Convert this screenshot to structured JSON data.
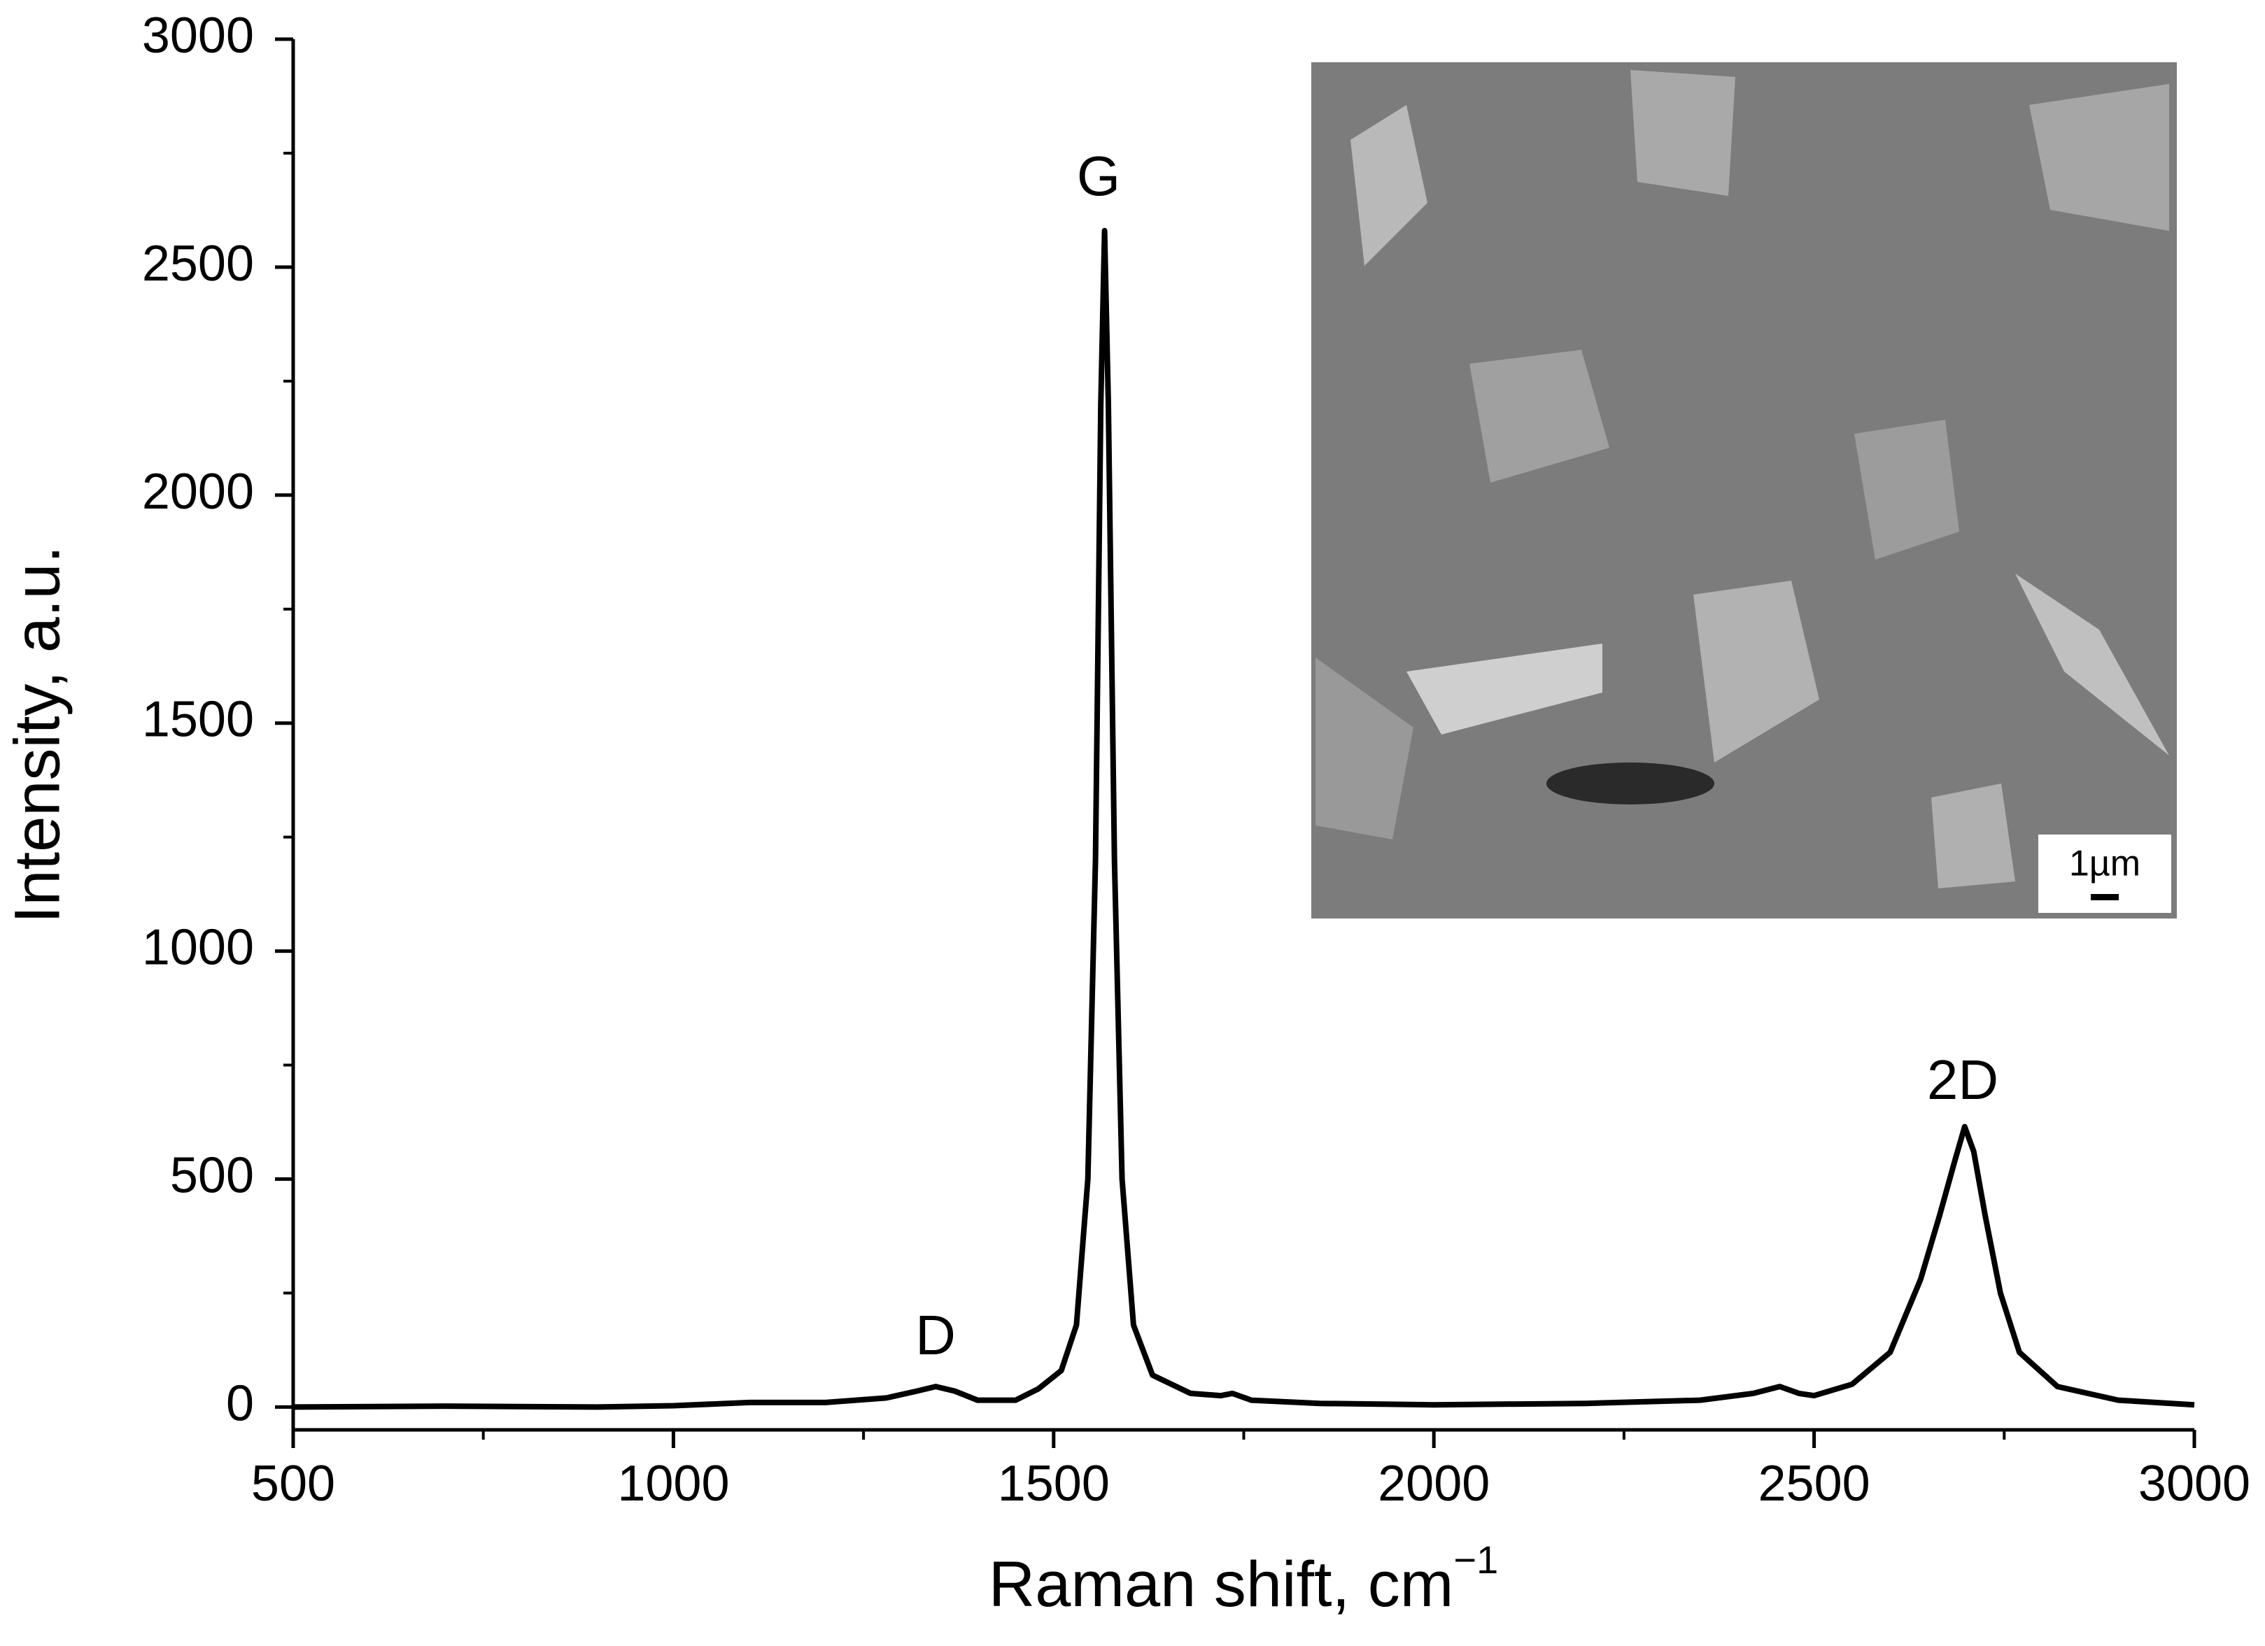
{
  "chart_data": {
    "type": "line",
    "xlabel": {
      "text": "Raman shift, cm",
      "superscript": "−1"
    },
    "ylabel": "Intensity, a.u.",
    "annotations": [
      "D",
      "G",
      "2D"
    ],
    "inset_scale_label": "1µm",
    "xlim": [
      500,
      3000
    ],
    "ylim": [
      -50,
      3000
    ],
    "xticks": [
      500,
      1000,
      1500,
      2000,
      2500,
      3000
    ],
    "yticks": [
      0,
      500,
      1000,
      1500,
      2000,
      2500,
      3000
    ],
    "xminorticks": [
      750,
      1250,
      1750,
      2250,
      2750
    ],
    "yminorticks": [
      250,
      750,
      1250,
      1750,
      2250,
      2750
    ],
    "series": [
      {
        "color": "#000000",
        "x": [
          500,
          700,
          900,
          1000,
          1100,
          1200,
          1280,
          1320,
          1345,
          1370,
          1400,
          1450,
          1480,
          1510,
          1530,
          1545,
          1555,
          1562,
          1567,
          1572,
          1580,
          1590,
          1605,
          1630,
          1680,
          1720,
          1735,
          1760,
          1850,
          2000,
          2200,
          2350,
          2420,
          2455,
          2480,
          2500,
          2550,
          2600,
          2640,
          2665,
          2685,
          2698,
          2710,
          2725,
          2745,
          2770,
          2820,
          2900,
          3000
        ],
        "values": [
          0,
          2,
          0,
          3,
          10,
          10,
          20,
          35,
          45,
          35,
          15,
          15,
          40,
          80,
          180,
          500,
          1200,
          2200,
          2580,
          2200,
          1200,
          500,
          180,
          70,
          30,
          25,
          30,
          15,
          8,
          5,
          8,
          15,
          30,
          45,
          30,
          25,
          50,
          120,
          280,
          420,
          540,
          615,
          560,
          420,
          250,
          120,
          45,
          15,
          5
        ]
      }
    ]
  }
}
